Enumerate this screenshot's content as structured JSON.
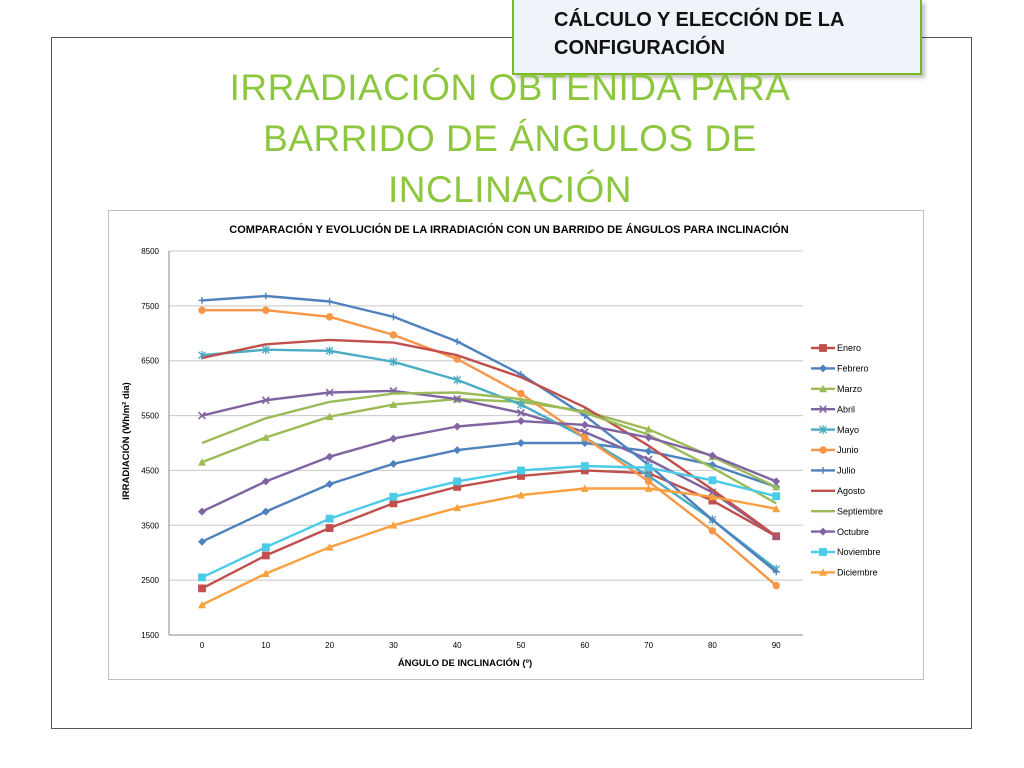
{
  "header": {
    "line1": "CÁLCULO Y ELECCIÓN DE LA",
    "line2": "CONFIGURACIÓN"
  },
  "slide_title": {
    "line1": "IRRADIACIÓN OBTENIDA PARA",
    "line2": "BARRIDO DE ÁNGULOS DE",
    "line3": "INCLINACIÓN"
  },
  "colors": {
    "title_green": "#8dc63f",
    "header_border": "#7ab828",
    "header_fill": "#eef4fa"
  },
  "chart_data": {
    "type": "line",
    "title": "COMPARACIÓN Y EVOLUCIÓN DE LA IRRADIACIÓN CON UN BARRIDO DE ÁNGULOS PARA INCLINACIÓN",
    "xlabel": "ÁNGULO DE INCLINACIÓN (º)",
    "ylabel": "IRRADIACIÓN (Wh/m² dia)",
    "x": [
      0,
      10,
      20,
      30,
      40,
      50,
      60,
      70,
      80,
      90
    ],
    "x_ticks": [
      "0",
      "10",
      "20",
      "30",
      "40",
      "50",
      "60",
      "70",
      "80",
      "90"
    ],
    "ylim": [
      1500,
      8500
    ],
    "y_ticks": [
      "1500",
      "2500",
      "3500",
      "4500",
      "5500",
      "6500",
      "7500",
      "8500"
    ],
    "grid": true,
    "legend_position": "right",
    "series": [
      {
        "name": "Enero",
        "color": "#c0504d",
        "marker": "square",
        "values": [
          2350,
          2950,
          3450,
          3900,
          4200,
          4400,
          4500,
          4450,
          3950,
          3300
        ]
      },
      {
        "name": "Febrero",
        "color": "#4f81bd",
        "marker": "diamond",
        "values": [
          3200,
          3750,
          4250,
          4620,
          4870,
          5000,
          5000,
          4850,
          4600,
          4200
        ]
      },
      {
        "name": "Marzo",
        "color": "#9bbb59",
        "marker": "triangle",
        "values": [
          4650,
          5100,
          5480,
          5700,
          5800,
          5750,
          5580,
          5250,
          4750,
          4200
        ]
      },
      {
        "name": "Abril",
        "color": "#8064a2",
        "marker": "x",
        "values": [
          5500,
          5780,
          5920,
          5950,
          5800,
          5550,
          5200,
          4700,
          4100,
          3300
        ]
      },
      {
        "name": "Mayo",
        "color": "#4bacc6",
        "marker": "star",
        "values": [
          6600,
          6700,
          6680,
          6480,
          6150,
          5700,
          5100,
          4400,
          3600,
          2700
        ]
      },
      {
        "name": "Junio",
        "color": "#f79646",
        "marker": "circle",
        "values": [
          7420,
          7420,
          7300,
          6970,
          6530,
          5900,
          5100,
          4300,
          3400,
          2400
        ]
      },
      {
        "name": "Julio",
        "color": "#4f81bd",
        "marker": "plus",
        "values": [
          7600,
          7680,
          7580,
          7300,
          6850,
          6250,
          5500,
          4600,
          3600,
          2650
        ]
      },
      {
        "name": "Agosto",
        "color": "#c0504d",
        "marker": "none",
        "values": [
          6550,
          6800,
          6880,
          6830,
          6600,
          6200,
          5650,
          4950,
          4150,
          3300
        ]
      },
      {
        "name": "Septiembre",
        "color": "#9bbb59",
        "marker": "none",
        "values": [
          5000,
          5450,
          5750,
          5900,
          5920,
          5800,
          5550,
          5150,
          4550,
          3900
        ]
      },
      {
        "name": "Octubre",
        "color": "#8064a2",
        "marker": "diamond",
        "values": [
          3750,
          4300,
          4750,
          5080,
          5300,
          5400,
          5330,
          5100,
          4770,
          4300
        ]
      },
      {
        "name": "Noviembre",
        "color": "#4bcbe8",
        "marker": "square",
        "values": [
          2550,
          3100,
          3620,
          4020,
          4300,
          4500,
          4580,
          4550,
          4320,
          4030
        ]
      },
      {
        "name": "Diciembre",
        "color": "#f9a03f",
        "marker": "triangle",
        "values": [
          2050,
          2620,
          3100,
          3500,
          3820,
          4050,
          4170,
          4170,
          4020,
          3800
        ]
      }
    ]
  }
}
